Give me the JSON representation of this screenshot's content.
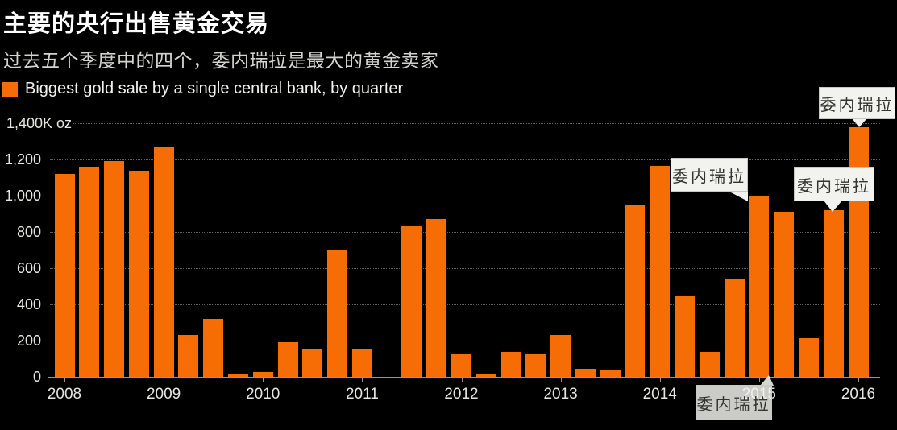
{
  "title": "主要的央行出售黄金交易",
  "subtitle": "过去五个季度中的四个，委内瑞拉是最大的黄金卖家",
  "legend": {
    "label": "Biggest gold sale by a single central bank, by quarter"
  },
  "colors": {
    "background": "#000000",
    "bar_orange": "#f76d05",
    "axis_gray": "#96968f",
    "text_white": "#ffffff"
  },
  "y_axis": {
    "ticks": [
      "1,400K oz",
      "1,200",
      "1,000",
      "800",
      "600",
      "400",
      "200",
      "0"
    ],
    "unit": "K oz"
  },
  "x_axis": {
    "years": [
      "2008",
      "2009",
      "2010",
      "2011",
      "2012",
      "2013",
      "2014",
      "2015",
      "2016"
    ]
  },
  "chart_data": {
    "type": "bar",
    "title": "主要的央行出售黄金交易",
    "subtitle": "过去五个季度中的四个，委内瑞拉是最大的黄金卖家",
    "series_name": "Biggest gold sale by a single central bank, by quarter",
    "ylabel": "K oz",
    "ylim": [
      0,
      1400
    ],
    "grid": "dotted horizontal",
    "x": [
      "2008 Q1",
      "2008 Q2",
      "2008 Q3",
      "2008 Q4",
      "2009 Q1",
      "2009 Q2",
      "2009 Q3",
      "2009 Q4",
      "2010 Q1",
      "2010 Q2",
      "2010 Q3",
      "2010 Q4",
      "2011 Q1",
      "2011 Q2",
      "2011 Q3",
      "2011 Q4",
      "2012 Q1",
      "2012 Q2",
      "2012 Q3",
      "2012 Q4",
      "2013 Q1",
      "2013 Q2",
      "2013 Q3",
      "2013 Q4",
      "2014 Q1",
      "2014 Q2",
      "2014 Q3",
      "2014 Q4",
      "2015 Q1",
      "2015 Q2",
      "2015 Q3",
      "2015 Q4",
      "2016 Q1"
    ],
    "values": [
      1120,
      1155,
      1190,
      1140,
      1265,
      230,
      320,
      20,
      25,
      190,
      150,
      700,
      155,
      0,
      830,
      870,
      125,
      15,
      140,
      125,
      230,
      45,
      35,
      950,
      1165,
      450,
      140,
      540,
      995,
      910,
      215,
      920,
      1380
    ]
  },
  "annotations": [
    {
      "label": "委内瑞拉",
      "target_quarter": "2016 Q1"
    },
    {
      "label": "委内瑞拉",
      "target_quarter": "2015 Q1"
    },
    {
      "label": "委内瑞拉",
      "target_quarter": "2015 Q4"
    },
    {
      "label": "委内瑞拉",
      "target_quarter": "2015 Q2"
    }
  ]
}
